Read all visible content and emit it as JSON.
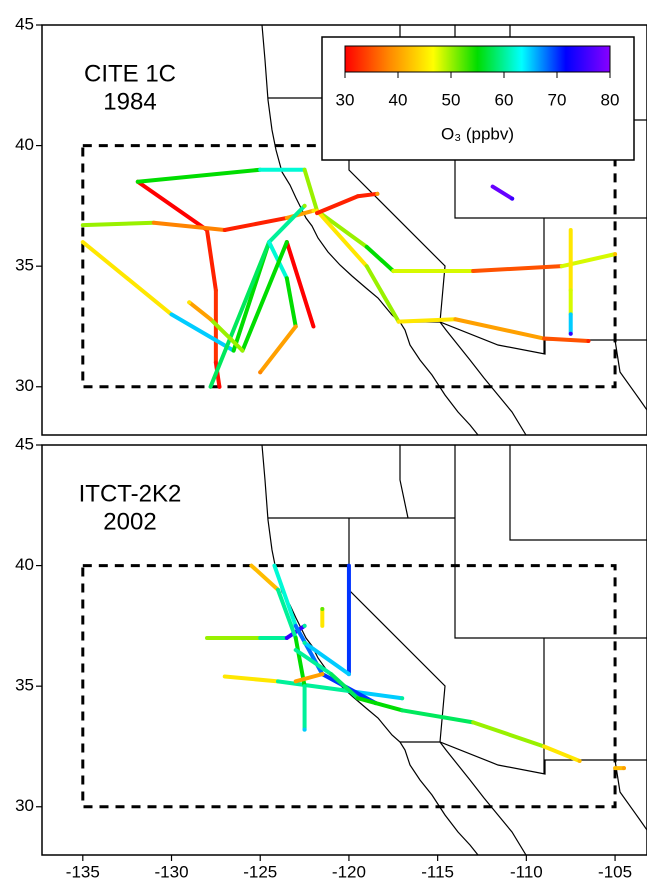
{
  "chart_data": [
    {
      "type": "track-map",
      "title": "CITE 1C",
      "subtitle": "1984",
      "xlim": [
        -137.3,
        -103.2
      ],
      "ylim": [
        28,
        45
      ],
      "yticks": [
        30,
        35,
        40,
        45
      ],
      "box": {
        "lon": [
          -135,
          -105
        ],
        "lat": [
          30,
          40
        ]
      },
      "colorbar": {
        "label": "O₃ (ppbv)",
        "clim": [
          30,
          80
        ],
        "ticks": [
          30,
          40,
          50,
          60,
          70,
          80
        ],
        "colors": [
          "#ff0000",
          "#ff8800",
          "#ffff00",
          "#00dd00",
          "#00ffff",
          "#0000ff",
          "#8800ff"
        ]
      },
      "tracks": [
        {
          "lon": [
            -131.9,
            -128,
            -127.5,
            -127.5,
            -127.3
          ],
          "lat": [
            38.5,
            36.5,
            34,
            31,
            30
          ],
          "o3": [
            30,
            32,
            33,
            31,
            30
          ]
        },
        {
          "lon": [
            -131.9,
            -125,
            -122.5,
            -121.8
          ],
          "lat": [
            38.5,
            39,
            39,
            37.3
          ],
          "o3": [
            55,
            62,
            50,
            45
          ]
        },
        {
          "lon": [
            -135,
            -131,
            -127,
            -123.5,
            -122
          ],
          "lat": [
            36.7,
            36.8,
            36.5,
            37,
            37.3
          ],
          "o3": [
            50,
            38,
            32,
            40,
            45
          ]
        },
        {
          "lon": [
            -135,
            -130,
            -126.5,
            -124.5,
            -122.5
          ],
          "lat": [
            36,
            33,
            31.5,
            36,
            37.5
          ],
          "o3": [
            45,
            65,
            55,
            60,
            50
          ]
        },
        {
          "lon": [
            -127.8,
            -124.5,
            -123.5,
            -123,
            -125
          ],
          "lat": [
            30,
            36,
            34.5,
            32.5,
            30.6
          ],
          "o3": [
            58,
            62,
            55,
            40,
            38
          ]
        },
        {
          "lon": [
            -121.8,
            -119,
            -117.5,
            -113,
            -108,
            -105
          ],
          "lat": [
            37.3,
            35.8,
            34.8,
            34.8,
            35,
            35.5
          ],
          "o3": [
            50,
            55,
            48,
            35,
            48,
            42
          ]
        },
        {
          "lon": [
            -121.8,
            -119,
            -117.2,
            -114,
            -109,
            -106.5
          ],
          "lat": [
            37.3,
            35,
            32.7,
            32.8,
            32,
            31.9
          ],
          "o3": [
            45,
            50,
            45,
            40,
            35,
            32
          ]
        },
        {
          "lon": [
            -121.8,
            -119.5,
            -118.4
          ],
          "lat": [
            37.2,
            37.9,
            38
          ],
          "o3": [
            32,
            32,
            40
          ]
        },
        {
          "lon": [
            -122,
            -123.5,
            -126,
            -127.8,
            -129
          ],
          "lat": [
            32.5,
            36,
            31.5,
            32.8,
            33.5
          ],
          "o3": [
            30,
            55,
            50,
            40,
            45
          ]
        },
        {
          "lon": [
            -107.5,
            -107.5,
            -107.5,
            -107.5
          ],
          "lat": [
            36.5,
            34,
            33,
            32.2
          ],
          "o3": [
            45,
            48,
            65,
            75
          ]
        },
        {
          "lon": [
            -111.9,
            -110.8
          ],
          "lat": [
            38.3,
            37.8
          ],
          "o3": [
            78,
            75
          ]
        }
      ]
    },
    {
      "type": "track-map",
      "title": "ITCT-2K2",
      "subtitle": "2002",
      "xlim": [
        -137.3,
        -103.2
      ],
      "ylim": [
        28,
        45
      ],
      "yticks": [
        30,
        35,
        40,
        45
      ],
      "xticks": [
        -135,
        -130,
        -125,
        -120,
        -115,
        -110,
        -105
      ],
      "box": {
        "lon": [
          -135,
          -105
        ],
        "lat": [
          30,
          40
        ]
      },
      "tracks": [
        {
          "lon": [
            -128,
            -125,
            -123.5,
            -122.5
          ],
          "lat": [
            37,
            37,
            37,
            37.5
          ],
          "o3": [
            50,
            60,
            75,
            60
          ]
        },
        {
          "lon": [
            -127,
            -124,
            -120,
            -117
          ],
          "lat": [
            35.4,
            35.2,
            34.8,
            34.5
          ],
          "o3": [
            45,
            60,
            65,
            60
          ]
        },
        {
          "lon": [
            -125.5,
            -124,
            -123,
            -122.5,
            -122.5
          ],
          "lat": [
            40,
            39,
            37,
            35,
            33.2
          ],
          "o3": [
            42,
            60,
            55,
            60,
            65
          ]
        },
        {
          "lon": [
            -124.2,
            -123,
            -121.5,
            -118.5
          ],
          "lat": [
            40,
            37.5,
            35.5,
            34.3
          ],
          "o3": [
            62,
            68,
            70,
            75
          ]
        },
        {
          "lon": [
            -120,
            -120,
            -122.5
          ],
          "lat": [
            40,
            35.5,
            36.8
          ],
          "o3": [
            70,
            65,
            60
          ]
        },
        {
          "lon": [
            -123,
            -121,
            -119.5,
            -117,
            -113,
            -109,
            -107
          ],
          "lat": [
            36.5,
            35.5,
            34.5,
            34,
            33.5,
            32.5,
            31.9
          ],
          "o3": [
            60,
            58,
            55,
            58,
            50,
            45,
            42
          ]
        },
        {
          "lon": [
            -121.5,
            -121.5
          ],
          "lat": [
            37.5,
            38.2
          ],
          "o3": [
            45,
            52
          ]
        },
        {
          "lon": [
            -123,
            -121.5
          ],
          "lat": [
            35.2,
            35.5
          ],
          "o3": [
            40,
            40
          ]
        },
        {
          "lon": [
            -105,
            -104.5
          ],
          "lat": [
            31.6,
            31.6
          ],
          "o3": [
            42,
            40
          ]
        }
      ]
    }
  ]
}
